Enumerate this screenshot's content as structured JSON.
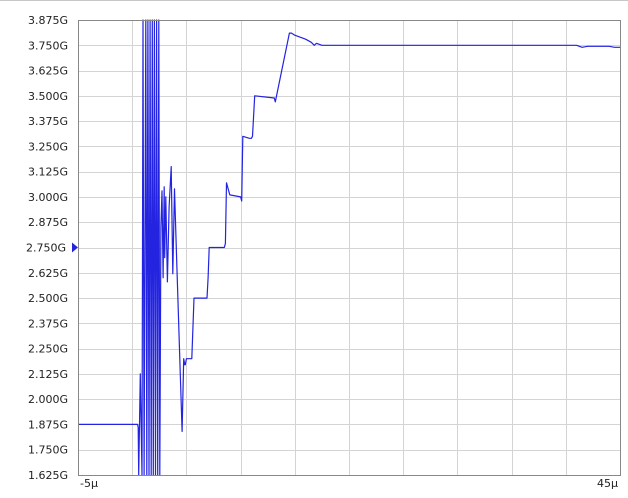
{
  "chart_data": {
    "type": "line",
    "title": "",
    "xlabel": "",
    "ylabel": "",
    "x_unit": "s",
    "y_unit": "Hz",
    "xlim": [
      -5e-06,
      4.5e-05
    ],
    "ylim": [
      1625000000.0,
      3875000000.0
    ],
    "grid": true,
    "legend": "none",
    "x_tick_labels": [
      "-5µ",
      "45µ"
    ],
    "y_tick_labels": [
      "3.875G",
      "3.750G",
      "3.625G",
      "3.500G",
      "3.375G",
      "3.250G",
      "3.125G",
      "3.000G",
      "2.875G",
      "2.750G",
      "2.625G",
      "2.500G",
      "2.375G",
      "2.250G",
      "2.125G",
      "2.000G",
      "1.875G",
      "1.750G",
      "1.625G"
    ],
    "y_marker": {
      "label": "2.750G",
      "value": 2750000000.0
    },
    "series": [
      {
        "color": "#2323e0",
        "x_us": [
          -5.0,
          0.5,
          0.55,
          0.6,
          0.75,
          0.9,
          1.0,
          1.1,
          1.25,
          1.35,
          1.45,
          1.55,
          1.65,
          1.75,
          1.85,
          1.95,
          2.05,
          2.15,
          2.25,
          2.35,
          2.45,
          2.55,
          2.65,
          2.75,
          2.85,
          2.95,
          3.0,
          3.1,
          3.25,
          3.4,
          3.6,
          3.75,
          3.9,
          4.1,
          4.6,
          4.75,
          4.85,
          4.9,
          5.0,
          5.5,
          5.6,
          5.7,
          6.0,
          6.9,
          7.0,
          7.1,
          7.2,
          8.5,
          8.6,
          8.7,
          9.0,
          10.0,
          10.1,
          10.2,
          10.8,
          11.0,
          11.1,
          11.3,
          13.0,
          13.1,
          13.2,
          14.5,
          14.7,
          15.0,
          15.5,
          16.0,
          16.5,
          16.8,
          17.0,
          17.5,
          18.0,
          20.0,
          25.0,
          30.0,
          35.0,
          40.0,
          41.0,
          41.5,
          42.0,
          43.0,
          44.0,
          44.5,
          45.0
        ],
        "y_G": [
          1.875,
          1.875,
          1.86,
          1.6,
          2.125,
          1.6,
          3.875,
          1.6,
          3.875,
          1.6,
          3.875,
          1.6,
          3.875,
          1.6,
          3.875,
          1.6,
          3.875,
          1.6,
          3.875,
          1.6,
          3.875,
          1.6,
          2.85,
          3.03,
          2.6,
          3.05,
          2.7,
          3.0,
          2.58,
          2.95,
          3.15,
          2.62,
          3.04,
          2.7,
          1.84,
          2.2,
          2.17,
          2.17,
          2.2,
          2.2,
          2.35,
          2.5,
          2.5,
          2.5,
          2.6,
          2.75,
          2.75,
          2.75,
          2.77,
          3.07,
          3.01,
          3.0,
          2.98,
          3.3,
          3.29,
          3.29,
          3.3,
          3.5,
          3.49,
          3.49,
          3.47,
          3.81,
          3.81,
          3.8,
          3.79,
          3.78,
          3.765,
          3.75,
          3.76,
          3.75,
          3.75,
          3.75,
          3.75,
          3.75,
          3.75,
          3.75,
          3.75,
          3.74,
          3.745,
          3.745,
          3.745,
          3.74,
          3.74
        ]
      }
    ]
  }
}
